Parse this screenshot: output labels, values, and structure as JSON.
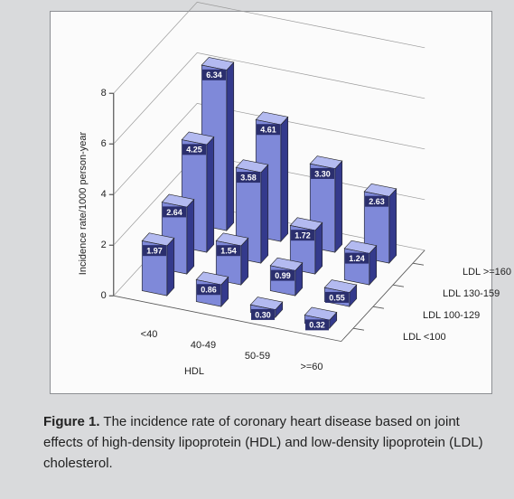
{
  "chart_data": {
    "type": "bar3d",
    "y_label": "Incidence rate/1000 person-year",
    "x_label": "HDL",
    "categories": [
      "<40",
      "40-49",
      "50-59",
      ">=60"
    ],
    "color": "#7f89d9",
    "ylim": [
      0,
      8
    ],
    "yticks": [
      0,
      2,
      4,
      6,
      8
    ],
    "grid": true,
    "series": [
      {
        "name": "LDL <100",
        "values": [
          1.97,
          0.86,
          0.3,
          0.32
        ],
        "value_labels": [
          "1.97",
          "0.86",
          "0.30",
          "0.32"
        ]
      },
      {
        "name": "LDL 100-129",
        "values": [
          2.64,
          1.54,
          0.99,
          0.55
        ],
        "value_labels": [
          "2.64",
          "1.54",
          "0.99",
          "0.55"
        ]
      },
      {
        "name": "LDL 130-159",
        "values": [
          4.25,
          3.58,
          1.72,
          1.24
        ],
        "value_labels": [
          "4.25",
          "3.58",
          "1.72",
          "1.24"
        ]
      },
      {
        "name": "LDL >=160",
        "values": [
          6.34,
          4.61,
          3.3,
          2.63
        ],
        "value_labels": [
          "6.34",
          "4.61",
          "3.30",
          "2.63"
        ]
      }
    ]
  },
  "caption": {
    "label": "Figure 1.",
    "text": "The incidence rate of coronary heart disease based on joint effects of high-density lipoprotein (HDL) and low-density lipoprotein (LDL) cholesterol."
  }
}
